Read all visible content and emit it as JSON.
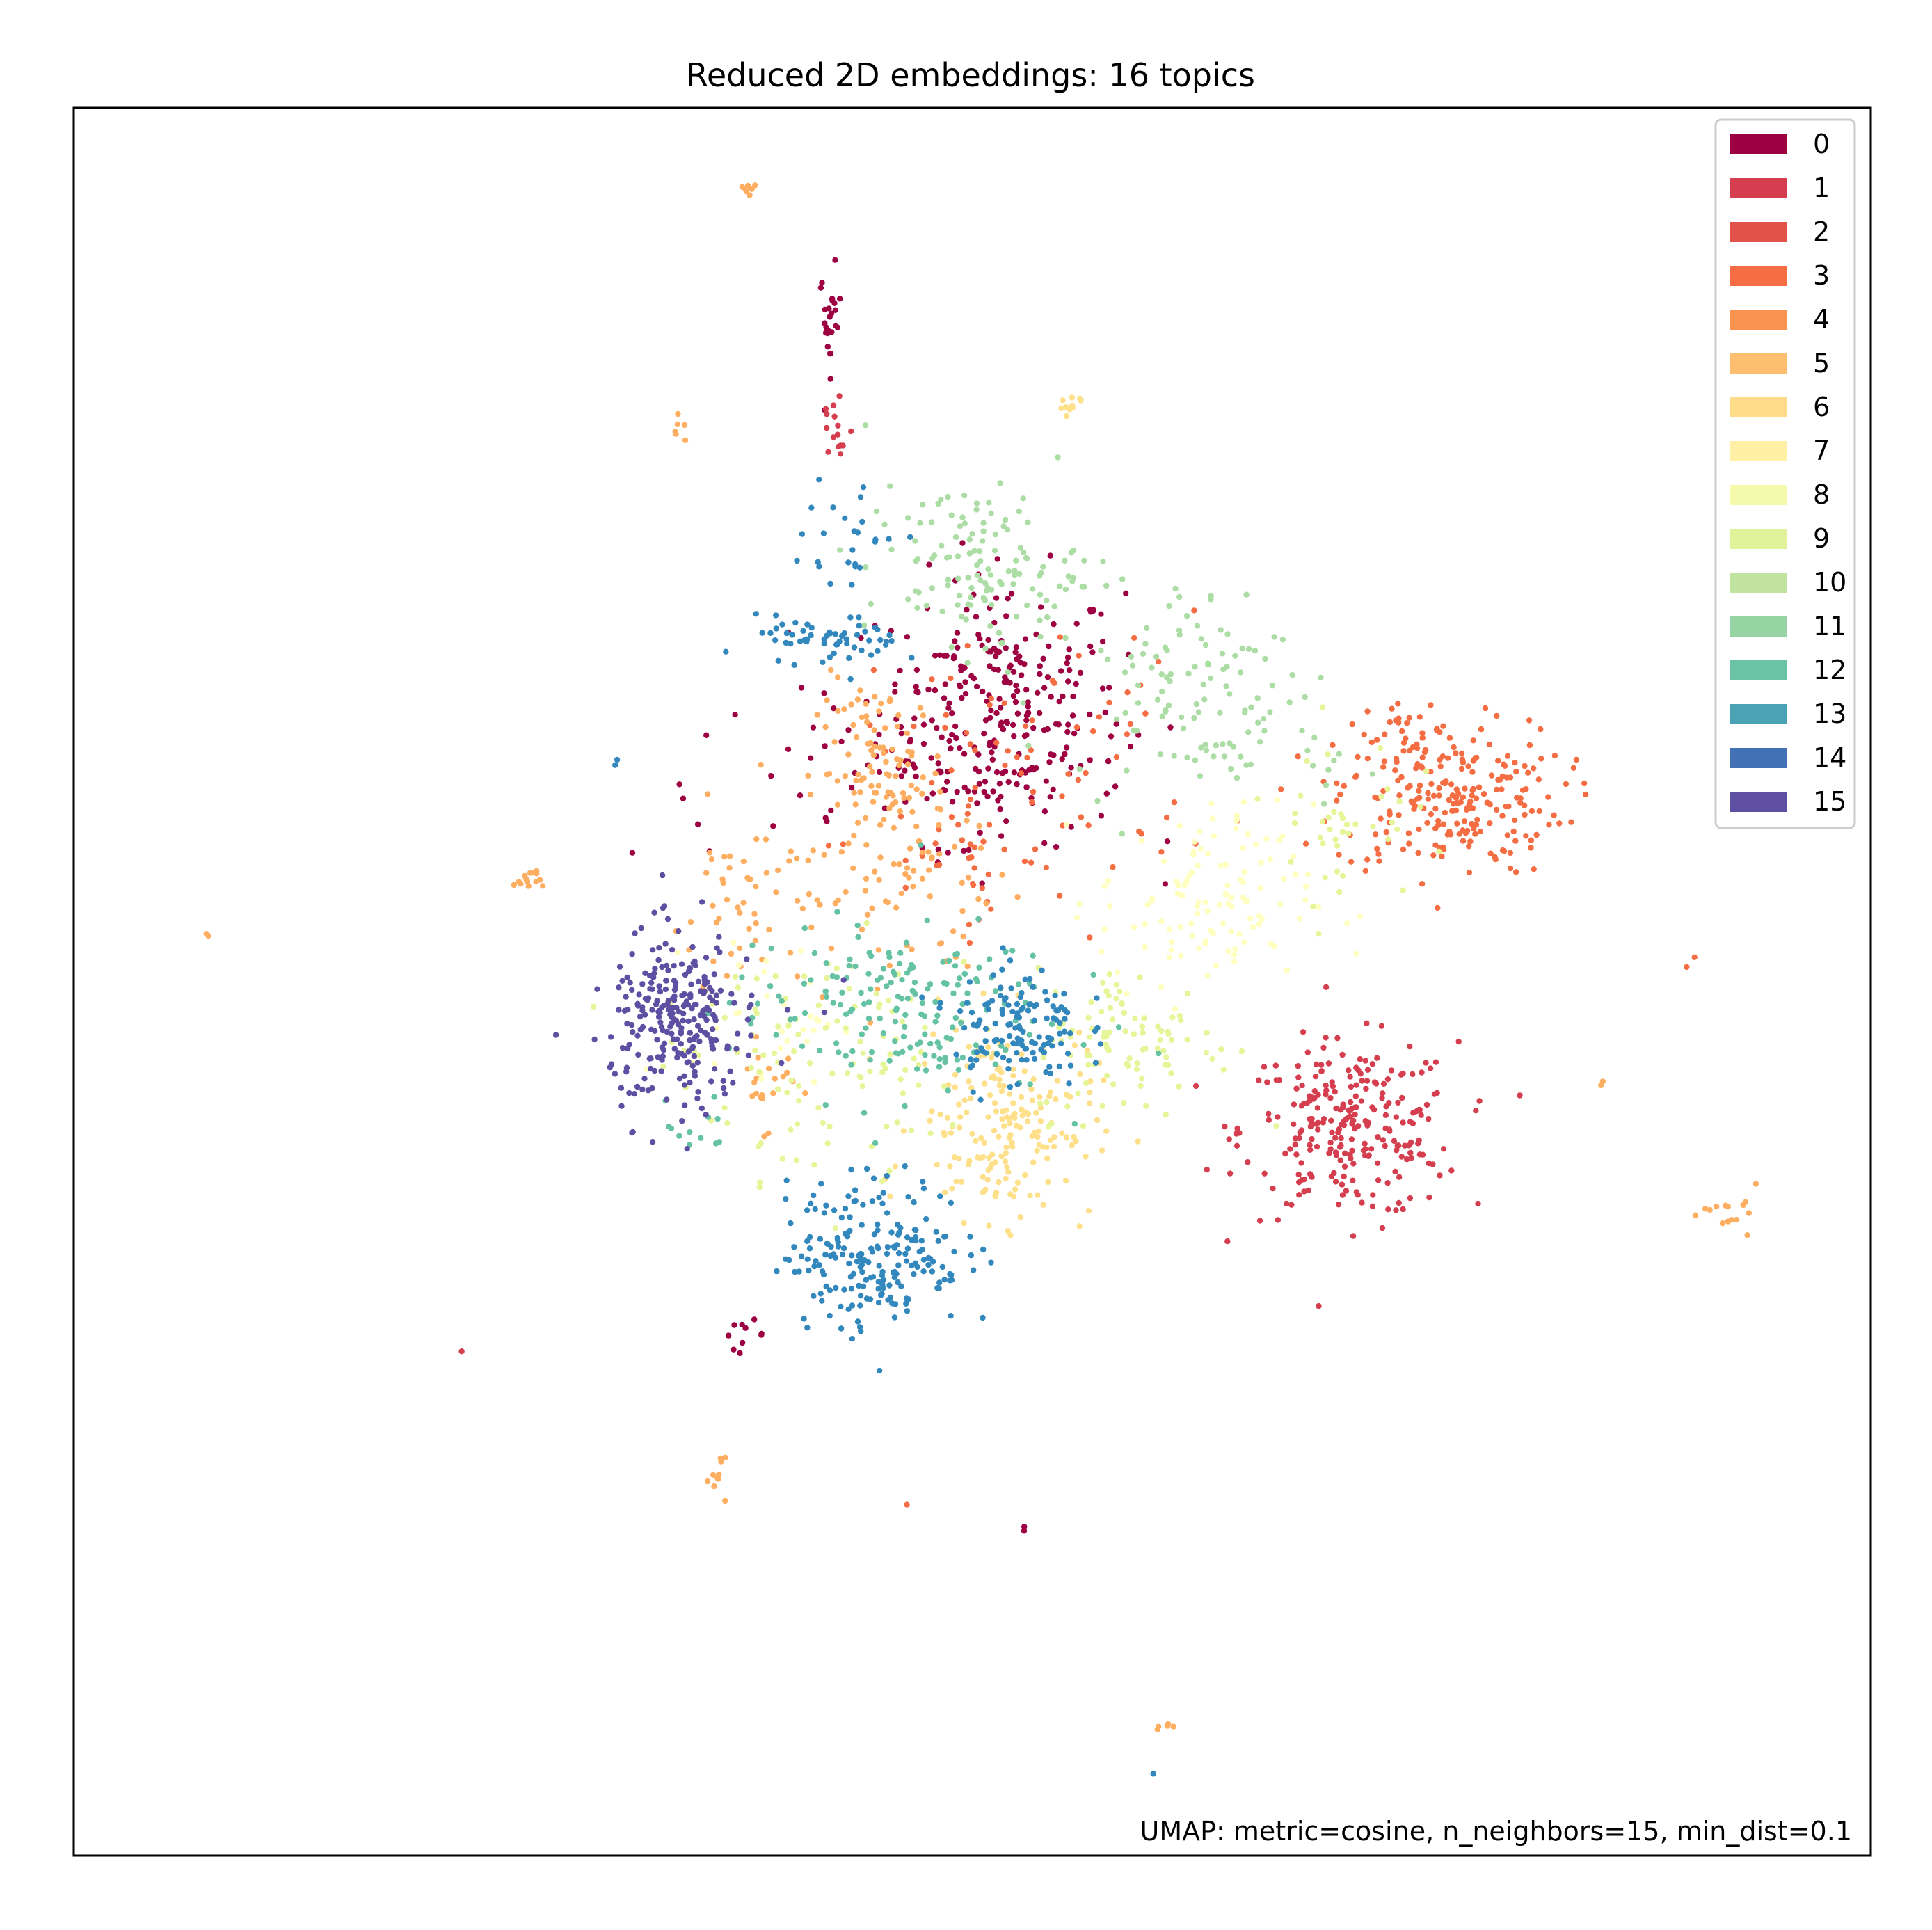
{
  "chart_data": {
    "type": "scatter",
    "title": "Reduced 2D embeddings: 16 topics",
    "annotation": "UMAP: metric=cosine, n_neighbors=15, min_dist=0.1",
    "xlabel": "",
    "ylabel": "",
    "xlim": [
      0,
      100
    ],
    "ylim": [
      0,
      100
    ],
    "axis_ticks": false,
    "grid": false,
    "legend_position": "top-right",
    "series": [
      {
        "name": "0",
        "color": "#9e0142",
        "clusters": [
          [
            51.6,
            65.6,
            3.4,
            3.8,
            260
          ],
          [
            42.1,
            87.8,
            0.3,
            1.5,
            25
          ],
          [
            37.3,
            29.8,
            0.6,
            0.4,
            10
          ],
          [
            45.0,
            62.0,
            7.0,
            2.5,
            60
          ],
          [
            52.9,
            18.8,
            0.2,
            0.2,
            2
          ]
        ]
      },
      {
        "name": "1",
        "color": "#d53e4f",
        "clusters": [
          [
            71.0,
            41.5,
            3.0,
            2.5,
            260
          ],
          [
            42.4,
            81.5,
            0.5,
            1.5,
            15
          ],
          [
            21.7,
            28.7,
            0.2,
            0.2,
            1
          ]
        ]
      },
      {
        "name": "2",
        "color": "#f46d43",
        "clusters": [
          [
            76.5,
            60.5,
            3.2,
            2.2,
            230
          ],
          [
            74.5,
            64.0,
            1.2,
            1.0,
            25
          ],
          [
            89.9,
            50.9,
            0.3,
            0.3,
            2
          ],
          [
            46.3,
            20.0,
            0.2,
            0.2,
            1
          ]
        ]
      },
      {
        "name": "3",
        "color": "#f46d43",
        "clusters": [
          [
            54.0,
            63.0,
            5.0,
            4.0,
            70
          ],
          [
            49.5,
            57.0,
            2.5,
            2.0,
            30
          ]
        ]
      },
      {
        "name": "4",
        "color": "#fdae61",
        "clusters": [
          [
            45.0,
            62.0,
            1.8,
            2.6,
            110
          ],
          [
            47.5,
            55.0,
            2.5,
            2.5,
            50
          ],
          [
            38.5,
            44.0,
            0.8,
            1.2,
            20
          ],
          [
            25.3,
            55.9,
            0.4,
            0.3,
            15
          ]
        ]
      },
      {
        "name": "5",
        "color": "#fdae61",
        "clusters": [
          [
            38.0,
            54.0,
            2.5,
            3.0,
            60
          ],
          [
            37.5,
            95.5,
            0.3,
            0.2,
            8
          ],
          [
            33.7,
            81.4,
            0.2,
            0.4,
            6
          ],
          [
            7.5,
            52.5,
            0.1,
            0.1,
            2
          ],
          [
            35.8,
            21.8,
            0.4,
            0.6,
            10
          ],
          [
            61.1,
            7.4,
            0.3,
            0.3,
            5
          ],
          [
            92.3,
            36.6,
            0.8,
            0.8,
            15
          ],
          [
            85.0,
            44.0,
            0.1,
            0.1,
            2
          ]
        ]
      },
      {
        "name": "6",
        "color": "#fee08b",
        "clusters": [
          [
            51.8,
            42.0,
            2.5,
            2.8,
            190
          ],
          [
            55.2,
            82.4,
            0.4,
            0.8,
            10
          ]
        ]
      },
      {
        "name": "7",
        "color": "#ffffbf",
        "clusters": [
          [
            63.0,
            54.5,
            3.0,
            2.8,
            120
          ],
          [
            38.5,
            48.0,
            2.0,
            2.0,
            35
          ]
        ]
      },
      {
        "name": "8",
        "color": "#e6f598",
        "clusters": [
          [
            42.0,
            47.0,
            5.0,
            3.0,
            90
          ],
          [
            41.5,
            41.0,
            3.0,
            2.0,
            20
          ]
        ]
      },
      {
        "name": "9",
        "color": "#e6f598",
        "clusters": [
          [
            59.0,
            46.5,
            2.8,
            2.2,
            95
          ],
          [
            70.5,
            59.5,
            2.0,
            2.5,
            40
          ]
        ]
      },
      {
        "name": "10",
        "color": "#abdda4",
        "clusters": [
          [
            61.5,
            67.5,
            3.0,
            3.0,
            90
          ],
          [
            67.0,
            63.5,
            2.5,
            1.5,
            30
          ]
        ]
      },
      {
        "name": "11",
        "color": "#abdda4",
        "clusters": [
          [
            50.0,
            74.0,
            3.0,
            2.2,
            110
          ],
          [
            52.5,
            71.0,
            2.0,
            2.0,
            20
          ]
        ]
      },
      {
        "name": "12",
        "color": "#66c2a5",
        "clusters": [
          [
            45.5,
            48.5,
            4.5,
            2.6,
            180
          ],
          [
            35.0,
            41.5,
            1.0,
            0.8,
            12
          ]
        ]
      },
      {
        "name": "13",
        "color": "#3288bd",
        "clusters": [
          [
            44.6,
            34.5,
            2.5,
            2.2,
            210
          ],
          [
            30.0,
            63.0,
            0.2,
            0.2,
            2
          ]
        ]
      },
      {
        "name": "14",
        "color": "#3288bd",
        "clusters": [
          [
            52.5,
            47.5,
            1.8,
            1.8,
            130
          ],
          [
            42.0,
            69.5,
            2.0,
            0.7,
            60
          ],
          [
            43.0,
            75.0,
            1.5,
            2.0,
            25
          ],
          [
            59.9,
            4.6,
            0.1,
            0.1,
            1
          ]
        ]
      },
      {
        "name": "15",
        "color": "#5e4fa2",
        "clusters": [
          [
            33.5,
            47.5,
            1.8,
            2.6,
            220
          ],
          [
            34.5,
            49.0,
            2.8,
            1.8,
            50
          ]
        ]
      }
    ],
    "legend_colors": [
      "#9e0142",
      "#d53e4f",
      "#e25249",
      "#f46d43",
      "#f9934f",
      "#fdbf6f",
      "#fedc89",
      "#fff0a6",
      "#f4f9ab",
      "#e0f39a",
      "#c0e4a0",
      "#97d4a4",
      "#6bc3a5",
      "#4aa2b5",
      "#4272b5",
      "#5e4fa2"
    ]
  }
}
